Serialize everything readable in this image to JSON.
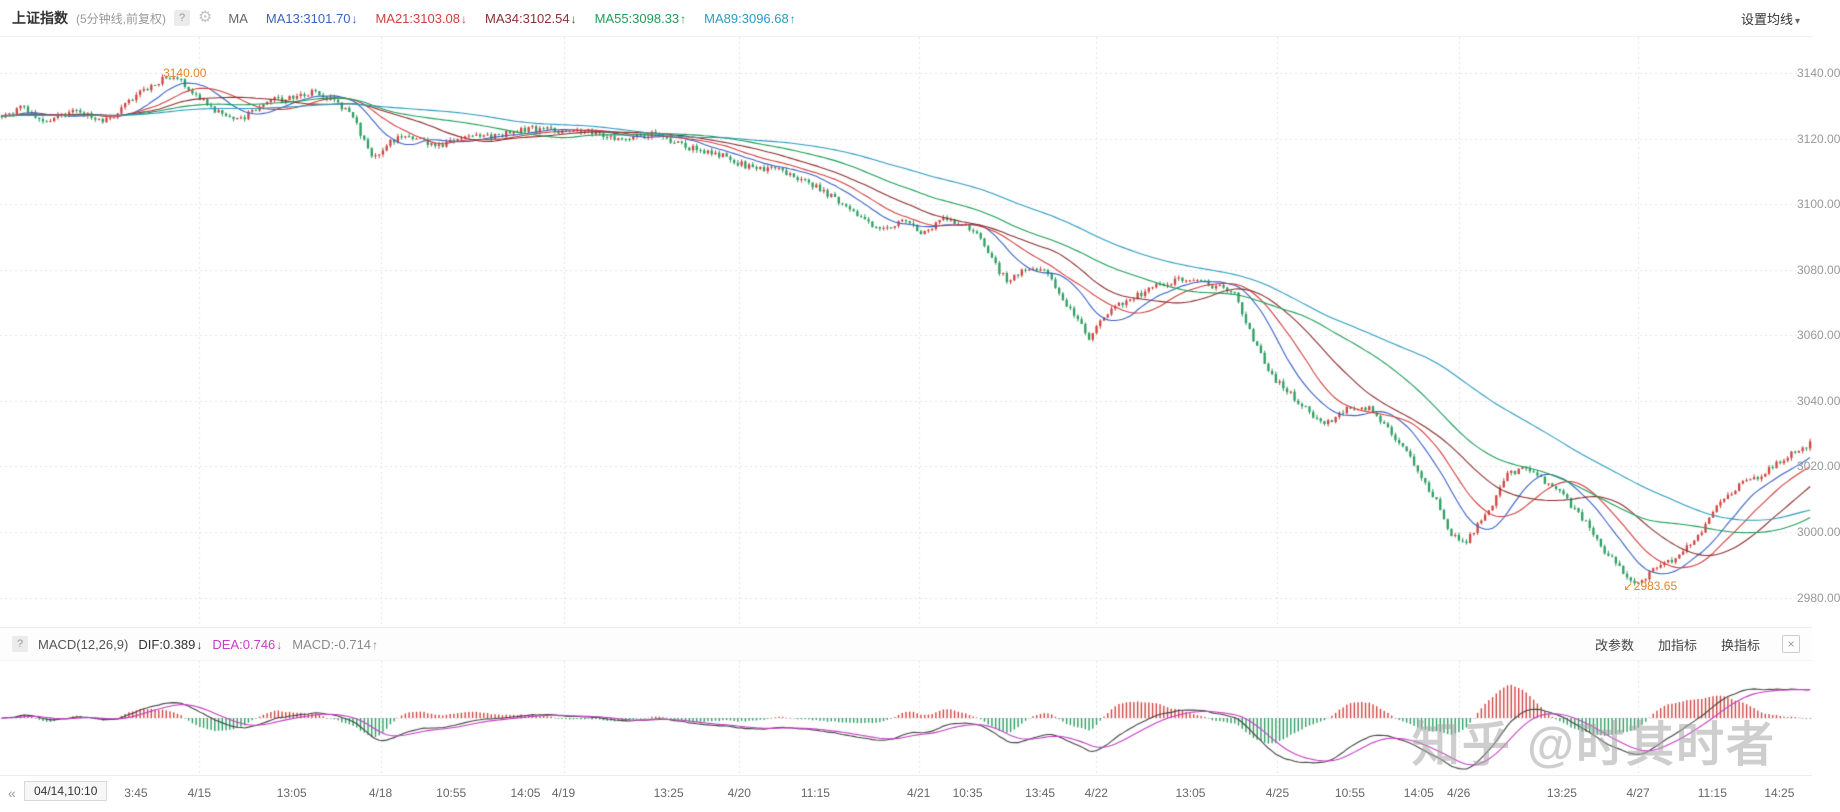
{
  "header": {
    "title": "上证指数",
    "subtitle": "(5分钟线,前复权)",
    "help_icon": "?",
    "gear_icon": "⚙",
    "ma_prefix": "MA",
    "ma_items": [
      {
        "label": "MA13:3101.70",
        "arrow": "↓",
        "color": "#3a62c4"
      },
      {
        "label": "MA21:3103.08",
        "arrow": "↓",
        "color": "#d23f3f"
      },
      {
        "label": "MA34:3102.54",
        "arrow": "↓",
        "color": "#8c2f2f"
      },
      {
        "label": "MA55:3098.33",
        "arrow": "↑",
        "color": "#1f9d57"
      },
      {
        "label": "MA89:3096.68",
        "arrow": "↑",
        "color": "#2e9bc0"
      }
    ],
    "settings_label": "设置均线",
    "settings_caret": "▾"
  },
  "macd_panel": {
    "help_icon": "?",
    "indicator_name": "MACD(12,26,9)",
    "values": [
      {
        "label": "DIF:0.389",
        "arrow": "↓",
        "color": "#333333"
      },
      {
        "label": "DEA:0.746",
        "arrow": "↓",
        "color": "#c53fc5"
      },
      {
        "label": "MACD:-0.714",
        "arrow": "↑",
        "color": "#8a8a8a"
      }
    ],
    "buttons": [
      "改参数",
      "加指标",
      "换指标"
    ],
    "close_icon": "×"
  },
  "time_axis": {
    "nav_back_icon": "«",
    "current_time": "04/14,10:10",
    "labels": [
      {
        "text": "3:45",
        "pos": 0.075
      },
      {
        "text": "4/15",
        "pos": 0.11
      },
      {
        "text": "13:05",
        "pos": 0.161
      },
      {
        "text": "4/18",
        "pos": 0.21
      },
      {
        "text": "10:55",
        "pos": 0.249
      },
      {
        "text": "14:05",
        "pos": 0.29
      },
      {
        "text": "4/19",
        "pos": 0.311
      },
      {
        "text": "13:25",
        "pos": 0.369
      },
      {
        "text": "4/20",
        "pos": 0.408
      },
      {
        "text": "11:15",
        "pos": 0.45
      },
      {
        "text": "4/21",
        "pos": 0.507
      },
      {
        "text": "10:35",
        "pos": 0.534
      },
      {
        "text": "13:45",
        "pos": 0.574
      },
      {
        "text": "4/22",
        "pos": 0.605
      },
      {
        "text": "13:05",
        "pos": 0.657
      },
      {
        "text": "4/25",
        "pos": 0.705
      },
      {
        "text": "10:55",
        "pos": 0.745
      },
      {
        "text": "14:05",
        "pos": 0.783
      },
      {
        "text": "4/26",
        "pos": 0.805
      },
      {
        "text": "13:25",
        "pos": 0.862
      },
      {
        "text": "4/27",
        "pos": 0.904
      },
      {
        "text": "11:15",
        "pos": 0.945
      },
      {
        "text": "14:25",
        "pos": 0.982
      }
    ]
  },
  "watermark": "知乎 @时其时者",
  "chart_data": {
    "type": "candlestick",
    "title": "上证指数 5分钟K线 (前复权)",
    "interval": "5分钟",
    "seed": 97531,
    "bars": 485,
    "y_axis": {
      "min": 2971,
      "max": 3151,
      "gridline_values": [
        3140,
        3120,
        3100,
        3080,
        3060,
        3040,
        3020,
        3000,
        2980
      ]
    },
    "day_gridlines": [
      0.11,
      0.21,
      0.311,
      0.408,
      0.507,
      0.605,
      0.705,
      0.805,
      0.904
    ],
    "high_annotation": {
      "text": "3140.00",
      "price": 3140.0,
      "x": 0.09
    },
    "low_annotation": {
      "text": "2983.65",
      "price": 2983.65,
      "x": 0.896,
      "arrow": "↙"
    },
    "ma_windows": [
      13,
      21,
      34,
      55,
      89
    ],
    "macd_params": [
      12,
      26,
      9
    ],
    "colors": {
      "up": "#cf4642",
      "down": "#2f9e63",
      "ma": [
        "#3a62c4",
        "#d23f3f",
        "#8c2f2f",
        "#1f9d57",
        "#2e9bc0"
      ],
      "dif": "#444444",
      "dea": "#c53fc5"
    },
    "price_path": [
      [
        0.0,
        3127
      ],
      [
        0.012,
        3129
      ],
      [
        0.022,
        3126
      ],
      [
        0.04,
        3128
      ],
      [
        0.055,
        3125
      ],
      [
        0.07,
        3131
      ],
      [
        0.085,
        3137
      ],
      [
        0.096,
        3140
      ],
      [
        0.105,
        3134
      ],
      [
        0.118,
        3128
      ],
      [
        0.132,
        3126
      ],
      [
        0.145,
        3131
      ],
      [
        0.158,
        3132
      ],
      [
        0.172,
        3135
      ],
      [
        0.183,
        3131
      ],
      [
        0.194,
        3127
      ],
      [
        0.205,
        3114
      ],
      [
        0.213,
        3118
      ],
      [
        0.225,
        3121
      ],
      [
        0.243,
        3118
      ],
      [
        0.26,
        3120
      ],
      [
        0.28,
        3122
      ],
      [
        0.3,
        3123
      ],
      [
        0.322,
        3122
      ],
      [
        0.342,
        3120
      ],
      [
        0.36,
        3121
      ],
      [
        0.378,
        3118
      ],
      [
        0.396,
        3115
      ],
      [
        0.412,
        3112
      ],
      [
        0.43,
        3110
      ],
      [
        0.447,
        3107
      ],
      [
        0.461,
        3101
      ],
      [
        0.473,
        3097
      ],
      [
        0.486,
        3092
      ],
      [
        0.498,
        3095
      ],
      [
        0.509,
        3091
      ],
      [
        0.52,
        3096
      ],
      [
        0.531,
        3094
      ],
      [
        0.541,
        3090
      ],
      [
        0.549,
        3082
      ],
      [
        0.556,
        3077
      ],
      [
        0.567,
        3080
      ],
      [
        0.579,
        3079
      ],
      [
        0.591,
        3068
      ],
      [
        0.601,
        3059
      ],
      [
        0.613,
        3068
      ],
      [
        0.626,
        3072
      ],
      [
        0.641,
        3075
      ],
      [
        0.656,
        3078
      ],
      [
        0.669,
        3075
      ],
      [
        0.681,
        3073
      ],
      [
        0.691,
        3061
      ],
      [
        0.701,
        3048
      ],
      [
        0.716,
        3040
      ],
      [
        0.731,
        3033
      ],
      [
        0.744,
        3037
      ],
      [
        0.757,
        3038
      ],
      [
        0.769,
        3030
      ],
      [
        0.781,
        3020
      ],
      [
        0.793,
        3010
      ],
      [
        0.801,
        3000
      ],
      [
        0.809,
        2996
      ],
      [
        0.821,
        3005
      ],
      [
        0.833,
        3018
      ],
      [
        0.842,
        3020
      ],
      [
        0.853,
        3015
      ],
      [
        0.863,
        3012
      ],
      [
        0.876,
        3003
      ],
      [
        0.886,
        2994
      ],
      [
        0.896,
        2988
      ],
      [
        0.903,
        2984
      ],
      [
        0.913,
        2988
      ],
      [
        0.923,
        2991
      ],
      [
        0.936,
        2998
      ],
      [
        0.949,
        3008
      ],
      [
        0.961,
        3014
      ],
      [
        0.973,
        3018
      ],
      [
        0.986,
        3022
      ],
      [
        1.0,
        3027
      ]
    ]
  }
}
